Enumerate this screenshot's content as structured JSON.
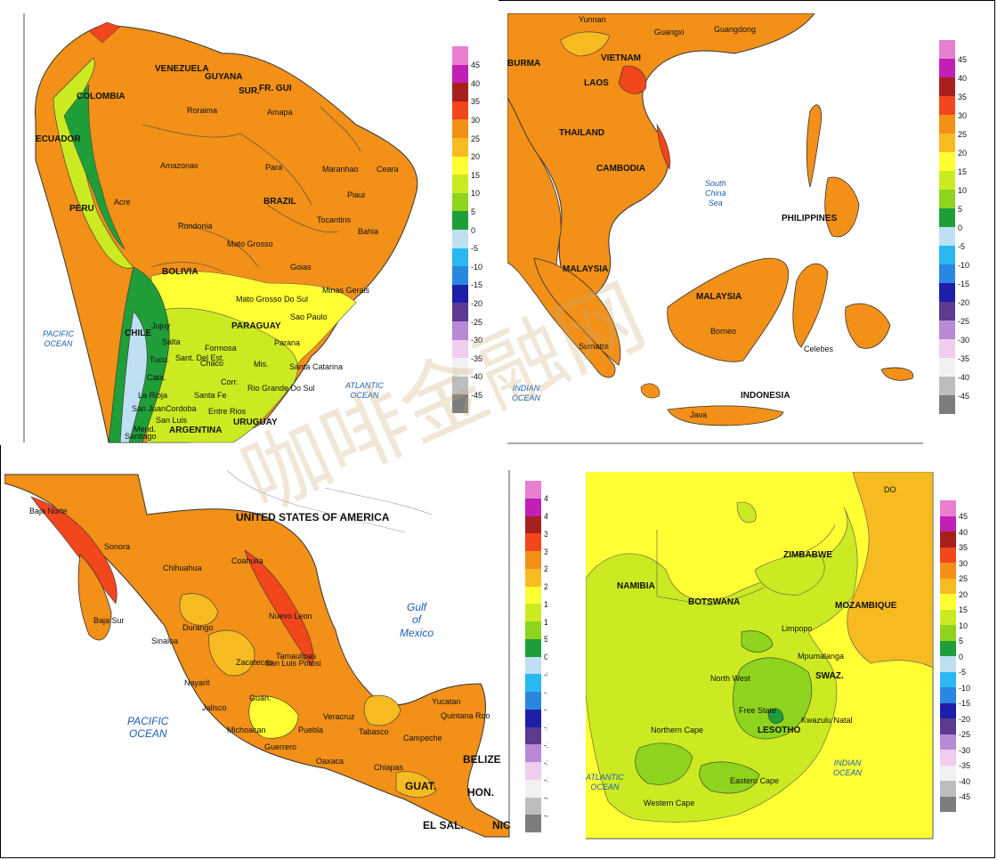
{
  "legend": {
    "ticks": [
      "45",
      "40",
      "35",
      "30",
      "25",
      "20",
      "15",
      "10",
      "5",
      "0",
      "-5",
      "-10",
      "-15",
      "-20",
      "-25",
      "-30",
      "-35",
      "-40",
      "-45"
    ],
    "colors": [
      "#e87fd0",
      "#c21fb5",
      "#a6201e",
      "#f2461c",
      "#f29018",
      "#f7bb22",
      "#ffff33",
      "#ccea22",
      "#8ed41e",
      "#1f9e3a",
      "#bfe0f2",
      "#2ab8f2",
      "#2a87e0",
      "#1e1eaa",
      "#5b3a8f",
      "#b88ad6",
      "#f0cdee",
      "#f1f1f1",
      "#bdbdbd",
      "#7d7d7d"
    ]
  },
  "panels": {
    "south_america": {
      "labels": [
        "COLOMBIA",
        "VENEZUELA",
        "GUYANA",
        "SUR.",
        "FR. GUI",
        "ECUADOR",
        "PERU",
        "BRAZIL",
        "BOLIVIA",
        "PARAGUAY",
        "CHILE",
        "ARGENTINA",
        "URUGUAY",
        "Amazonas",
        "Para",
        "Maranhao",
        "Ceara",
        "Piaui",
        "Tocantins",
        "Bahia",
        "Rondonia",
        "Acre",
        "Mato Grosso",
        "Goias",
        "Minas Gerais",
        "Mato Grosso Do Sul",
        "Sao Paulo",
        "Parana",
        "Santa Catarina",
        "Rio Grande Do Sul",
        "Roraima",
        "Amapa",
        "Formosa",
        "Chaco",
        "Santa Fe",
        "Corr.",
        "Mis.",
        "Cordoba",
        "Entre Rios",
        "San Luis",
        "Sant. Del Est.",
        "Jujuy",
        "Salta",
        "Tucu.",
        "Cata.",
        "La Rioja",
        "San Juan",
        "Mend.",
        "Santiago"
      ],
      "oceans": [
        "PACIFIC\nOCEAN",
        "ATLANTIC\nOCEAN"
      ]
    },
    "southeast_asia": {
      "labels": [
        "Yunnan",
        "Guangxi",
        "Guangdong",
        "BURMA",
        "VIETNAM",
        "LAOS",
        "THAILAND",
        "CAMBODIA",
        "PHILIPPINES",
        "MALAYSIA",
        "MALAYSIA",
        "Borneo",
        "Sumatra",
        "INDONESIA",
        "Java",
        "Celebes"
      ],
      "oceans": [
        "South\nChina\nSea",
        "INDIAN\nOCEAN"
      ]
    },
    "mexico": {
      "labels": [
        "UNITED STATES OF AMERICA",
        "Baja Norte",
        "Sonora",
        "Chihuahua",
        "Coahuila",
        "Nuevo Leon",
        "Baja Sur",
        "Sinaloa",
        "Durango",
        "Tamaulipas",
        "Zacatecas",
        "San Luis Potosi",
        "Nayarit",
        "Jalisco",
        "Guan.",
        "Michoacan",
        "Veracruz",
        "Puebla",
        "Guerrero",
        "Oaxaca",
        "Tabasco",
        "Chiapas",
        "Campeche",
        "Yucatan",
        "Quintana Roo",
        "BELIZE",
        "GUAT.",
        "HON.",
        "EL SAL.",
        "NIC"
      ],
      "oceans": [
        "Gulf\nof\nMexico",
        "PACIFIC\nOCEAN"
      ]
    },
    "southern_africa": {
      "labels": [
        "NAMIBIA",
        "BOTSWANA",
        "ZIMBABWE",
        "MOZAMBIQUE",
        "Limpopo",
        "North West",
        "Mpumalanga",
        "SWAZ.",
        "Free State",
        "Kwazulu Natal",
        "LESOTHO",
        "Northern Cape",
        "Eastern Cape",
        "Western Cape",
        "DO"
      ],
      "oceans": [
        "INDIAN\nOCEAN",
        "ATLANTIC\nOCEAN"
      ]
    }
  },
  "watermark": "咖啡金融网"
}
